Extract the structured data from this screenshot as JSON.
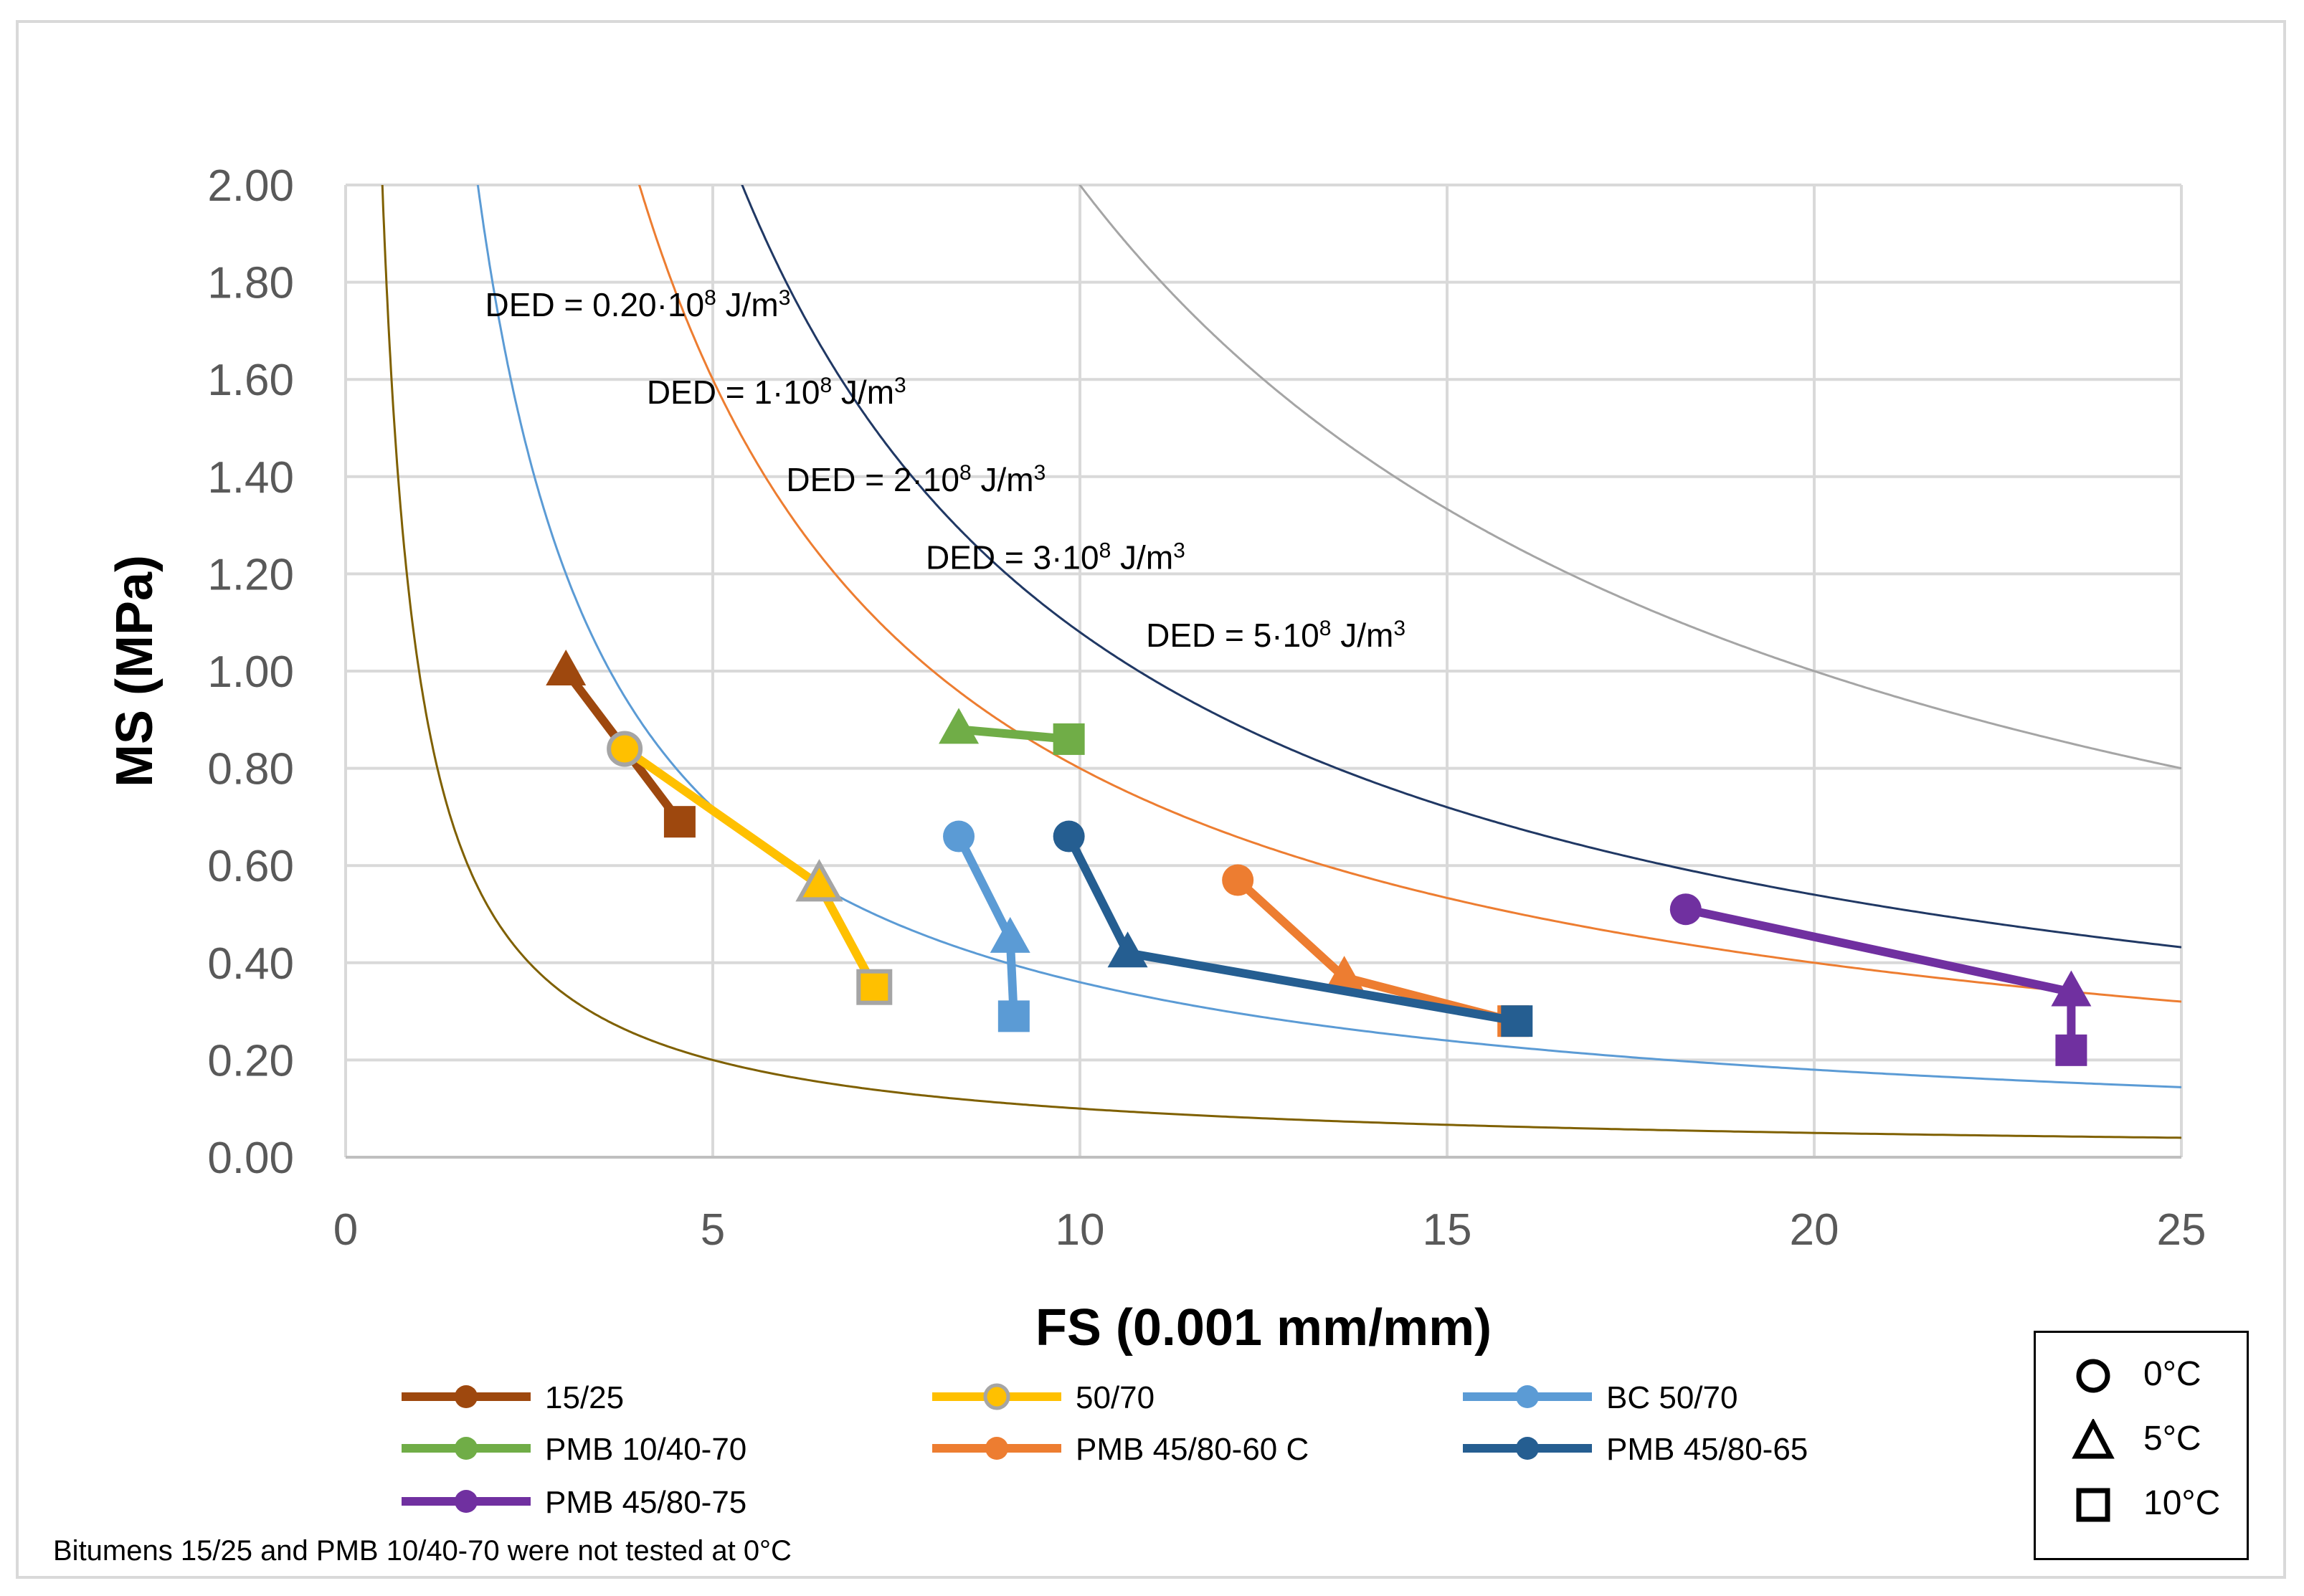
{
  "chart_data": {
    "type": "line",
    "xlabel": "FS (0.001 mm/mm)",
    "ylabel": "MS (MPa)",
    "xlim": [
      0,
      25
    ],
    "ylim": [
      0,
      2
    ],
    "xticks": [
      "0",
      "5",
      "10",
      "15",
      "20",
      "25"
    ],
    "yticks": [
      "0.00",
      "0.20",
      "0.40",
      "0.60",
      "0.80",
      "1.00",
      "1.20",
      "1.40",
      "1.60",
      "1.80",
      "2.00"
    ],
    "grid": true,
    "ded_curves": [
      {
        "label": "DED = 0.20·10",
        "sup_exp": "8",
        "unit": " J/m",
        "sup_unit": "3",
        "k": 1.0,
        "color": "#7f6000",
        "label_at": [
          1.9,
          1.73
        ]
      },
      {
        "label": "DED = 1·10",
        "sup_exp": "8",
        "unit": " J/m",
        "sup_unit": "3",
        "k": 3.6,
        "color": "#5b9bd5",
        "label_at": [
          4.1,
          1.55
        ]
      },
      {
        "label": "DED = 2·10",
        "sup_exp": "8",
        "unit": " J/m",
        "sup_unit": "3",
        "k": 8.0,
        "color": "#ed7d31",
        "label_at": [
          6.0,
          1.37
        ]
      },
      {
        "label": "DED = 3·10",
        "sup_exp": "8",
        "unit": " J/m",
        "sup_unit": "3",
        "k": 10.8,
        "color": "#203864",
        "label_at": [
          7.9,
          1.21
        ]
      },
      {
        "label": "DED = 5·10",
        "sup_exp": "8",
        "unit": " J/m",
        "sup_unit": "3",
        "k": 20.0,
        "color": "#a5a5a5",
        "label_at": [
          10.9,
          1.05
        ]
      }
    ],
    "series": [
      {
        "name": "15/25",
        "color": "#9e480e",
        "points": [
          {
            "x": 3.0,
            "y": 1.0,
            "temp": "5°C"
          },
          {
            "x": 4.55,
            "y": 0.69,
            "temp": "10°C"
          }
        ]
      },
      {
        "name": "50/70",
        "color": "#ffc000",
        "outline": "#a5a5a5",
        "points": [
          {
            "x": 3.8,
            "y": 0.84,
            "temp": "0°C"
          },
          {
            "x": 6.45,
            "y": 0.56,
            "temp": "5°C"
          },
          {
            "x": 7.2,
            "y": 0.35,
            "temp": "10°C"
          }
        ]
      },
      {
        "name": "BC 50/70",
        "color": "#5b9bd5",
        "points": [
          {
            "x": 8.35,
            "y": 0.66,
            "temp": "0°C"
          },
          {
            "x": 9.05,
            "y": 0.45,
            "temp": "5°C"
          },
          {
            "x": 9.1,
            "y": 0.29,
            "temp": "10°C"
          }
        ]
      },
      {
        "name": "PMB 10/40-70",
        "color": "#70ad47",
        "points": [
          {
            "x": 8.35,
            "y": 0.88,
            "temp": "5°C"
          },
          {
            "x": 9.85,
            "y": 0.86,
            "temp": "10°C"
          }
        ]
      },
      {
        "name": "PMB 45/80-60 C",
        "color": "#ed7d31",
        "points": [
          {
            "x": 12.15,
            "y": 0.57,
            "temp": "0°C"
          },
          {
            "x": 13.6,
            "y": 0.37,
            "temp": "5°C"
          },
          {
            "x": 15.9,
            "y": 0.28,
            "temp": "10°C"
          }
        ]
      },
      {
        "name": "PMB 45/80-65",
        "color": "#255e91",
        "points": [
          {
            "x": 9.85,
            "y": 0.66,
            "temp": "0°C"
          },
          {
            "x": 10.65,
            "y": 0.42,
            "temp": "5°C"
          },
          {
            "x": 15.95,
            "y": 0.28,
            "temp": "10°C"
          }
        ]
      },
      {
        "name": "PMB 45/80-75",
        "color": "#7030a0",
        "points": [
          {
            "x": 18.25,
            "y": 0.51,
            "temp": "0°C"
          },
          {
            "x": 23.5,
            "y": 0.34,
            "temp": "5°C"
          },
          {
            "x": 23.5,
            "y": 0.22,
            "temp": "10°C"
          }
        ]
      }
    ],
    "symbol_legend": [
      {
        "shape": "circle",
        "label": "0°C"
      },
      {
        "shape": "triangle",
        "label": "5°C"
      },
      {
        "shape": "square",
        "label": "10°C"
      }
    ],
    "note": "Bitumens 15/25 and PMB 10/40-70 were not tested at 0°C"
  }
}
